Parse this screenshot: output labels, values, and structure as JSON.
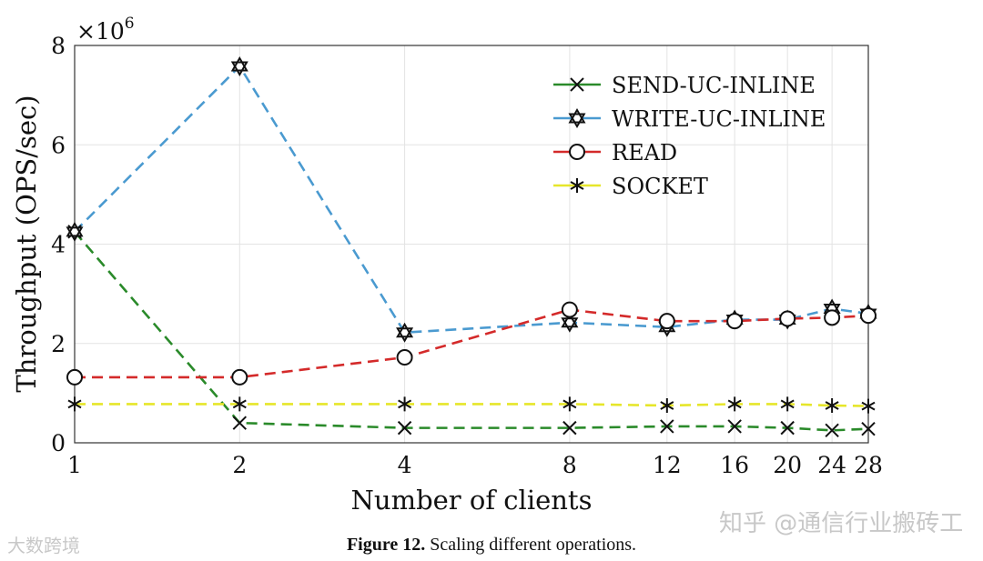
{
  "chart_data": {
    "type": "line",
    "xlabel": "Number of clients",
    "ylabel": "Throughput (OPS/sec)",
    "y_exponent_label": "×10",
    "y_exponent_power": "6",
    "x_categories": [
      "1",
      "2",
      "4",
      "8",
      "12",
      "16",
      "20",
      "24",
      "28"
    ],
    "x_positions": [
      1,
      2,
      3,
      4,
      4.59,
      5,
      5.32,
      5.59,
      5.81
    ],
    "ylim": [
      0,
      8
    ],
    "y_ticks": [
      "0",
      "2",
      "4",
      "6",
      "8"
    ],
    "grid": true,
    "legend_position": "top-right",
    "series": [
      {
        "name": "SEND-UC-INLINE",
        "color": "#2a8a2a",
        "marker": "x",
        "values": [
          4.25,
          0.4,
          0.3,
          0.3,
          0.33,
          0.33,
          0.3,
          0.25,
          0.28
        ]
      },
      {
        "name": "WRITE-UC-INLINE",
        "color": "#4a9ad0",
        "marker": "hexagram",
        "values": [
          4.25,
          7.58,
          2.22,
          2.42,
          2.33,
          2.48,
          2.48,
          2.7,
          2.6
        ]
      },
      {
        "name": "READ",
        "color": "#d42a2a",
        "marker": "circle",
        "values": [
          1.32,
          1.32,
          1.72,
          2.68,
          2.45,
          2.45,
          2.5,
          2.52,
          2.56
        ]
      },
      {
        "name": "SOCKET",
        "color": "#e6e62a",
        "marker": "asterisk",
        "values": [
          0.78,
          0.78,
          0.78,
          0.78,
          0.75,
          0.78,
          0.78,
          0.75,
          0.74
        ]
      }
    ]
  },
  "caption": {
    "label": "Figure 12.",
    "text": " Scaling different operations."
  },
  "watermarks": {
    "left": "大数跨境",
    "right": "知乎 @通信行业搬砖工"
  }
}
